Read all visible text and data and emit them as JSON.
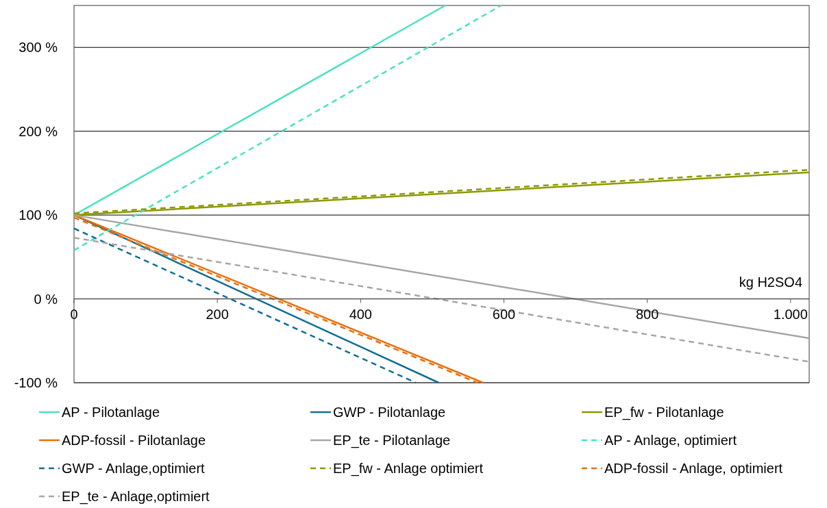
{
  "chart_data": {
    "type": "line",
    "xlim": [
      0,
      1026
    ],
    "ylim": [
      -100,
      350
    ],
    "xticks": [
      0,
      200,
      400,
      600,
      800,
      {
        "value": 1000,
        "label": "1.000"
      }
    ],
    "yticks": [
      {
        "value": -100,
        "label": "-100 %"
      },
      {
        "value": 0,
        "label": "0 %"
      },
      {
        "value": 100,
        "label": "100 %"
      },
      {
        "value": 200,
        "label": "200 %"
      },
      {
        "value": 300,
        "label": "300 %"
      }
    ],
    "grid": "y",
    "legend": "bottom",
    "marker": "none",
    "annotations": [
      "kg H2SO4"
    ],
    "series": [
      {
        "name": "AP - Pilotanlage",
        "color": "#48e2c0",
        "line_style": "solid",
        "x": [
          0,
          518
        ],
        "values": [
          100,
          350
        ]
      },
      {
        "name": "GWP - Pilotanlage",
        "color": "#106e96",
        "line_style": "solid",
        "x": [
          0,
          509
        ],
        "values": [
          100,
          -100
        ]
      },
      {
        "name": "EP_fw - Pilotanlage",
        "color": "#8c9a00",
        "line_style": "solid",
        "x": [
          0,
          1026
        ],
        "values": [
          100,
          151
        ]
      },
      {
        "name": "ADP-fossil - Pilotanlage",
        "color": "#e8700f",
        "line_style": "solid",
        "x": [
          0,
          571
        ],
        "values": [
          100,
          -100
        ]
      },
      {
        "name": "EP_te - Pilotanlage",
        "color": "#a6a6a6",
        "line_style": "solid",
        "x": [
          0,
          1026
        ],
        "values": [
          100,
          -47
        ]
      },
      {
        "name": "AP - Anlage, optimiert",
        "color": "#48e2c0",
        "line_style": "dashed",
        "x": [
          0,
          596
        ],
        "values": [
          58,
          350
        ]
      },
      {
        "name": "GWP - Anlage,optimiert",
        "color": "#106e96",
        "line_style": "dashed",
        "x": [
          0,
          477
        ],
        "values": [
          84,
          -100
        ]
      },
      {
        "name": "EP_fw - Anlage optimiert",
        "color": "#8c9a00",
        "line_style": "dashed",
        "x": [
          0,
          1026
        ],
        "values": [
          102,
          154
        ]
      },
      {
        "name": "ADP-fossil - Anlage, optimiert",
        "color": "#e8700f",
        "line_style": "dashed",
        "x": [
          0,
          563
        ],
        "values": [
          97,
          -100
        ]
      },
      {
        "name": "EP_te - Anlage,optimiert",
        "color": "#a6a6a6",
        "line_style": "dashed",
        "x": [
          0,
          1026
        ],
        "values": [
          73,
          -75
        ]
      }
    ]
  }
}
